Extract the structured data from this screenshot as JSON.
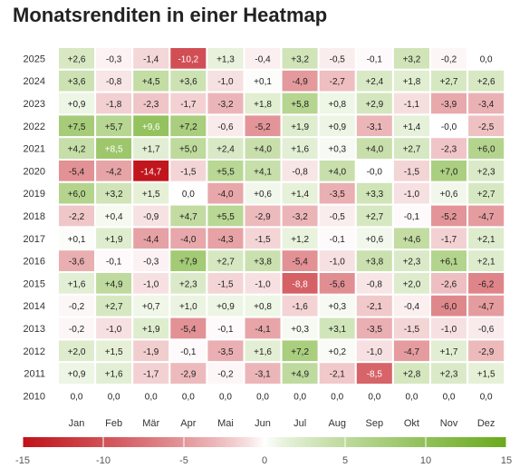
{
  "page": {
    "title": "Monatsrenditen in einer Heatmap"
  },
  "chart_data": {
    "type": "heatmap",
    "title": "Monatsrenditen in einer Heatmap",
    "x_categories": [
      "Jan",
      "Feb",
      "Mär",
      "Apr",
      "Mai",
      "Jun",
      "Jul",
      "Aug",
      "Sep",
      "Okt",
      "Nov",
      "Dez"
    ],
    "y_categories": [
      "2025",
      "2024",
      "2023",
      "2022",
      "2021",
      "2020",
      "2019",
      "2018",
      "2017",
      "2016",
      "2015",
      "2014",
      "2013",
      "2012",
      "2011",
      "2010"
    ],
    "values": [
      [
        "+2,6",
        "-0,3",
        "-1,4",
        "-10,2",
        "+1,3",
        "-0,4",
        "+3,2",
        "-0,5",
        "-0,1",
        "+3,2",
        "-0,2",
        "0,0"
      ],
      [
        "+3,6",
        "-0,8",
        "+4,5",
        "+3,6",
        "-1,0",
        "+0,1",
        "-4,9",
        "-2,7",
        "+2,4",
        "+1,8",
        "+2,7",
        "+2,6"
      ],
      [
        "+0,9",
        "-1,8",
        "-2,3",
        "-1,7",
        "-3,2",
        "+1,8",
        "+5,8",
        "+0,8",
        "+2,9",
        "-1,1",
        "-3,9",
        "-3,4"
      ],
      [
        "+7,5",
        "+5,7",
        "+9,6",
        "+7,2",
        "-0,6",
        "-5,2",
        "+1,9",
        "+0,9",
        "-3,1",
        "+1,4",
        "-0,0",
        "-2,5"
      ],
      [
        "+4,2",
        "+8,5",
        "+1,7",
        "+5,0",
        "+2,4",
        "+4,0",
        "+1,6",
        "+0,3",
        "+4,0",
        "+2,7",
        "-2,3",
        "+6,0"
      ],
      [
        "-5,4",
        "-4,2",
        "-14,7",
        "-1,5",
        "+5,5",
        "+4,1",
        "-0,8",
        "+4,0",
        "-0,0",
        "-1,5",
        "+7,0",
        "+2,3"
      ],
      [
        "+6,0",
        "+3,2",
        "+1,5",
        "0,0",
        "-4,0",
        "+0,6",
        "+1,4",
        "-3,5",
        "+3,3",
        "-1,0",
        "+0,6",
        "+2,7"
      ],
      [
        "-2,2",
        "+0,4",
        "-0,9",
        "+4,7",
        "+5,5",
        "-2,9",
        "-3,2",
        "-0,5",
        "+2,7",
        "-0,1",
        "-5,2",
        "-4,7"
      ],
      [
        "+0,1",
        "+1,9",
        "-4,4",
        "-4,0",
        "-4,3",
        "-1,5",
        "+1,2",
        "-0,1",
        "+0,6",
        "+4,6",
        "-1,7",
        "+2,1"
      ],
      [
        "-3,6",
        "-0,1",
        "-0,3",
        "+7,9",
        "+2,7",
        "+3,8",
        "-5,4",
        "-1,0",
        "+3,8",
        "+2,3",
        "+6,1",
        "+2,1"
      ],
      [
        "+1,6",
        "+4,9",
        "-1,0",
        "+2,3",
        "-1,5",
        "-1,0",
        "-8,8",
        "-5,6",
        "-0,8",
        "+2,0",
        "-2,6",
        "-6,2"
      ],
      [
        "-0,2",
        "+2,7",
        "+0,7",
        "+1,0",
        "+0,9",
        "+0,8",
        "-1,6",
        "+0,3",
        "-2,1",
        "-0,4",
        "-6,0",
        "-4,7"
      ],
      [
        "-0,2",
        "-1,0",
        "+1,9",
        "-5,4",
        "-0,1",
        "-4,1",
        "+0,3",
        "+3,1",
        "-3,5",
        "-1,5",
        "-1,0",
        "-0,6"
      ],
      [
        "+2,0",
        "+1,5",
        "-1,9",
        "-0,1",
        "-3,5",
        "+1,6",
        "+7,2",
        "+0,2",
        "-1,0",
        "-4,7",
        "+1,7",
        "-2,9"
      ],
      [
        "+0,9",
        "+1,6",
        "-1,7",
        "-2,9",
        "-0,2",
        "-3,1",
        "+4,9",
        "-2,1",
        "-8,5",
        "+2,8",
        "+2,3",
        "+1,5"
      ],
      [
        "0,0",
        "0,0",
        "0,0",
        "0,0",
        "0,0",
        "0,0",
        "0,0",
        "0,0",
        "0,0",
        "0,0",
        "0,0",
        "0,0"
      ]
    ],
    "color_scale": {
      "min": -15,
      "max": 15,
      "ticks": [
        "-15",
        "-10",
        "-5",
        "0",
        "5",
        "10",
        "15"
      ],
      "negative_color": "#c0121a",
      "neutral_color": "#ffffff",
      "positive_color": "#6aaa1e"
    }
  }
}
